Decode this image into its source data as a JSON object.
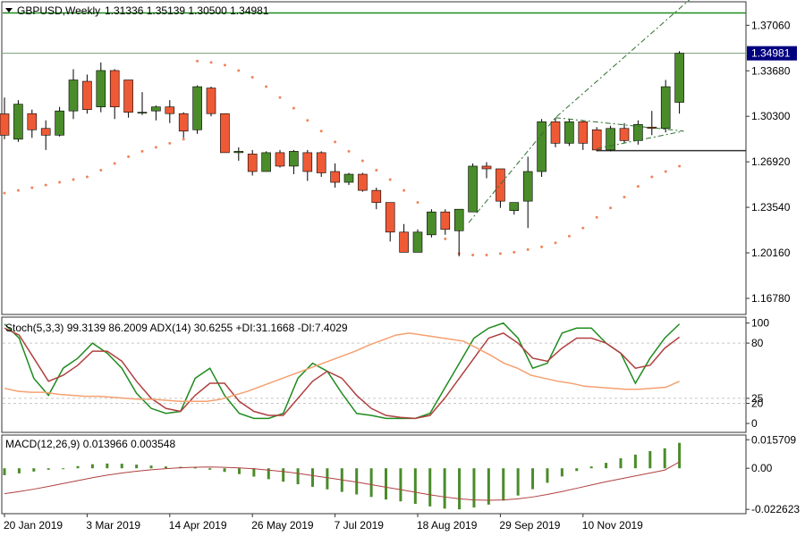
{
  "header": {
    "symbol": "GBPUSD,Weekly",
    "ohlc": "1.31336 1.35139 1.30500 1.34981"
  },
  "colors": {
    "bull": "#4a8c2a",
    "bear": "#ef5a36",
    "sar": "#f0845a",
    "grid": "#c8c8c8",
    "line": "#1f8c1f",
    "price_tag_bg": "#00007f",
    "signal": "#b04040",
    "adx": "#f4a070"
  },
  "chart_data": [
    {
      "type": "candlestick",
      "name": "price",
      "y_ticks": [
        "1.37060",
        "1.33680",
        "1.30300",
        "1.26920",
        "1.23540",
        "1.20160",
        "1.16780"
      ],
      "ylim": [
        1.1565,
        1.3874
      ],
      "current_price_label": "1.34981",
      "h_lines": [
        1.3798,
        1.3498,
        1.2775
      ],
      "candles": [
        [
          1.3048,
          1.317,
          1.286,
          1.289
        ],
        [
          1.286,
          1.315,
          1.284,
          1.312
        ],
        [
          1.305,
          1.308,
          1.287,
          1.293
        ],
        [
          1.294,
          1.3,
          1.278,
          1.289
        ],
        [
          1.289,
          1.31,
          1.288,
          1.307
        ],
        [
          1.307,
          1.338,
          1.301,
          1.33
        ],
        [
          1.329,
          1.334,
          1.305,
          1.308
        ],
        [
          1.31,
          1.343,
          1.306,
          1.337
        ],
        [
          1.337,
          1.338,
          1.301,
          1.31
        ],
        [
          1.33,
          1.328,
          1.302,
          1.306
        ],
        [
          1.306,
          1.321,
          1.304,
          1.306
        ],
        [
          1.307,
          1.311,
          1.3,
          1.31
        ],
        [
          1.31,
          1.315,
          1.298,
          1.305
        ],
        [
          1.305,
          1.306,
          1.287,
          1.292
        ],
        [
          1.293,
          1.326,
          1.29,
          1.325
        ],
        [
          1.324,
          1.325,
          1.303,
          1.305
        ],
        [
          1.305,
          1.305,
          1.276,
          1.276
        ],
        [
          1.276,
          1.28,
          1.27,
          1.277
        ],
        [
          1.275,
          1.278,
          1.259,
          1.262
        ],
        [
          1.262,
          1.277,
          1.262,
          1.276
        ],
        [
          1.276,
          1.278,
          1.265,
          1.266
        ],
        [
          1.266,
          1.278,
          1.26,
          1.277
        ],
        [
          1.276,
          1.278,
          1.255,
          1.262
        ],
        [
          1.276,
          1.277,
          1.258,
          1.261
        ],
        [
          1.262,
          1.268,
          1.25,
          1.254
        ],
        [
          1.254,
          1.261,
          1.252,
          1.26
        ],
        [
          1.26,
          1.261,
          1.247,
          1.248
        ],
        [
          1.248,
          1.25,
          1.234,
          1.239
        ],
        [
          1.239,
          1.239,
          1.21,
          1.217
        ],
        [
          1.217,
          1.223,
          1.202,
          1.202
        ],
        [
          1.202,
          1.219,
          1.202,
          1.217
        ],
        [
          1.215,
          1.234,
          1.213,
          1.232
        ],
        [
          1.232,
          1.234,
          1.215,
          1.219
        ],
        [
          1.218,
          1.234,
          1.199,
          1.234
        ],
        [
          1.232,
          1.268,
          1.232,
          1.266
        ],
        [
          1.266,
          1.269,
          1.257,
          1.264
        ],
        [
          1.264,
          1.264,
          1.235,
          1.24
        ],
        [
          1.233,
          1.239,
          1.23,
          1.239
        ],
        [
          1.24,
          1.273,
          1.22,
          1.262
        ],
        [
          1.262,
          1.301,
          1.258,
          1.299
        ],
        [
          1.299,
          1.302,
          1.28,
          1.283
        ],
        [
          1.283,
          1.301,
          1.281,
          1.299
        ],
        [
          1.299,
          1.3,
          1.278,
          1.283
        ],
        [
          1.293,
          1.295,
          1.277,
          1.278
        ],
        [
          1.278,
          1.296,
          1.277,
          1.294
        ],
        [
          1.294,
          1.298,
          1.283,
          1.285
        ],
        [
          1.285,
          1.3,
          1.282,
          1.297
        ],
        [
          1.295,
          1.307,
          1.289,
          1.294
        ],
        [
          1.294,
          1.33,
          1.291,
          1.325
        ],
        [
          1.3134,
          1.3514,
          1.305,
          1.3498
        ]
      ],
      "parabolic_sar": [
        [
          0,
          1.246
        ],
        [
          1,
          1.248
        ],
        [
          2,
          1.25
        ],
        [
          3,
          1.252
        ],
        [
          4,
          1.254
        ],
        [
          5,
          1.256
        ],
        [
          6,
          1.258
        ],
        [
          7,
          1.263
        ],
        [
          8,
          1.268
        ],
        [
          9,
          1.273
        ],
        [
          10,
          1.277
        ],
        [
          11,
          1.28
        ],
        [
          12,
          1.283
        ],
        [
          13,
          1.286
        ],
        [
          14,
          1.344
        ],
        [
          15,
          1.343
        ],
        [
          16,
          1.341
        ],
        [
          17,
          1.337
        ],
        [
          18,
          1.332
        ],
        [
          19,
          1.325
        ],
        [
          20,
          1.317
        ],
        [
          21,
          1.309
        ],
        [
          22,
          1.3
        ],
        [
          23,
          1.292
        ],
        [
          24,
          1.284
        ],
        [
          25,
          1.277
        ],
        [
          26,
          1.27
        ],
        [
          27,
          1.263
        ],
        [
          28,
          1.256
        ],
        [
          29,
          1.248
        ],
        [
          30,
          1.239
        ],
        [
          31,
          1.228
        ],
        [
          32,
          1.212
        ],
        [
          33,
          1.201
        ],
        [
          34,
          1.2
        ],
        [
          35,
          1.2
        ],
        [
          36,
          1.201
        ],
        [
          37,
          1.202
        ],
        [
          38,
          1.204
        ],
        [
          39,
          1.206
        ],
        [
          40,
          1.209
        ],
        [
          41,
          1.214
        ],
        [
          42,
          1.22
        ],
        [
          43,
          1.228
        ],
        [
          44,
          1.235
        ],
        [
          45,
          1.243
        ],
        [
          46,
          1.251
        ],
        [
          47,
          1.258
        ],
        [
          48,
          1.262
        ],
        [
          49,
          1.266
        ]
      ],
      "trendlines": [
        [
          [
            33.7,
            1.224
          ],
          [
            40,
            1.302
          ],
          [
            50,
            1.392
          ]
        ],
        [
          [
            40,
            1.302
          ],
          [
            49.3,
            1.292
          ]
        ],
        [
          [
            43,
            1.279
          ],
          [
            49.3,
            1.292
          ]
        ]
      ],
      "x_labels": [
        {
          "i": 0,
          "label": "20 Jan 2019"
        },
        {
          "i": 6,
          "label": "3 Mar 2019"
        },
        {
          "i": 12,
          "label": "14 Apr 2019"
        },
        {
          "i": 18,
          "label": "26 May 2019"
        },
        {
          "i": 24,
          "label": "7 Jul 2019"
        },
        {
          "i": 30,
          "label": "18 Aug 2019"
        },
        {
          "i": 36,
          "label": "29 Sep 2019"
        },
        {
          "i": 42,
          "label": "10 Nov 2019"
        }
      ]
    },
    {
      "type": "line",
      "name": "Stochastic and ADX",
      "label": "Stoch(5,3,3) 99.3139 86.2009  ADX(14) 30.6255 +DI:31.1668 -DI:7.4029",
      "y_ticks": [
        100,
        80,
        25,
        20,
        0
      ],
      "ylim": [
        -8,
        105
      ],
      "levels": [
        80,
        25,
        20
      ],
      "series": [
        {
          "values": [
            99,
            85,
            45,
            28,
            55,
            65,
            80,
            70,
            55,
            30,
            15,
            10,
            12,
            45,
            55,
            28,
            10,
            5,
            5,
            10,
            45,
            60,
            52,
            30,
            10,
            8,
            5,
            5,
            5,
            10,
            35,
            60,
            85,
            95,
            100,
            85,
            55,
            60,
            90,
            95,
            95,
            80,
            70,
            40,
            65,
            85,
            99
          ]
        },
        {
          "values": [
            95,
            88,
            65,
            42,
            48,
            58,
            72,
            72,
            62,
            42,
            25,
            15,
            12,
            28,
            40,
            40,
            22,
            12,
            8,
            8,
            25,
            42,
            52,
            45,
            28,
            15,
            8,
            6,
            5,
            8,
            25,
            45,
            65,
            85,
            90,
            80,
            65,
            62,
            75,
            85,
            85,
            80,
            70,
            55,
            58,
            75,
            86
          ]
        },
        {
          "values": [
            35,
            32,
            31,
            31,
            29,
            28,
            27,
            27,
            26,
            25,
            24,
            24,
            23,
            22,
            22,
            22,
            24,
            28,
            32,
            37,
            42,
            47,
            52,
            57,
            62,
            67,
            72,
            78,
            83,
            88,
            90,
            88,
            86,
            84,
            82,
            75,
            68,
            60,
            55,
            48,
            45,
            42,
            40,
            37,
            36,
            35,
            34,
            34,
            35,
            36,
            42
          ]
        }
      ]
    },
    {
      "type": "bar",
      "name": "MACD",
      "label": "MACD(12,26,9) 0.013966 0.003548",
      "y_ticks": [
        "0.015709",
        "0.00",
        "-0.022623"
      ],
      "ylim": [
        -0.0245,
        0.0178
      ],
      "values": [
        -0.0038,
        -0.0028,
        -0.0018,
        -0.0008,
        0.0,
        0.0012,
        0.0022,
        0.0026,
        0.0025,
        0.002,
        0.0015,
        0.001,
        0.0008,
        0.0004,
        -0.0008,
        -0.002,
        -0.0032,
        -0.0046,
        -0.006,
        -0.0074,
        -0.0088,
        -0.0102,
        -0.0116,
        -0.013,
        -0.0144,
        -0.0158,
        -0.0172,
        -0.0182,
        -0.0196,
        -0.021,
        -0.0222,
        -0.0226,
        -0.0216,
        -0.02,
        -0.0178,
        -0.015,
        -0.0115,
        -0.008,
        -0.0045,
        -0.0015,
        0.001,
        0.003,
        0.0055,
        0.0075,
        0.0095,
        0.011,
        0.014
      ],
      "signal": [
        -0.014,
        -0.0128,
        -0.0115,
        -0.01,
        -0.0084,
        -0.0068,
        -0.0052,
        -0.0038,
        -0.0026,
        -0.0016,
        -0.0008,
        -0.0002,
        0.0003,
        0.0006,
        0.0007,
        0.0005,
        0.0002,
        -0.0003,
        -0.001,
        -0.0018,
        -0.0028,
        -0.004,
        -0.0052,
        -0.0064,
        -0.0076,
        -0.009,
        -0.0104,
        -0.0118,
        -0.0132,
        -0.0146,
        -0.0158,
        -0.0168,
        -0.0174,
        -0.0176,
        -0.0174,
        -0.0168,
        -0.0158,
        -0.0144,
        -0.0128,
        -0.011,
        -0.0092,
        -0.0074,
        -0.0058,
        -0.0042,
        -0.0026,
        -0.001,
        0.0035
      ]
    }
  ]
}
